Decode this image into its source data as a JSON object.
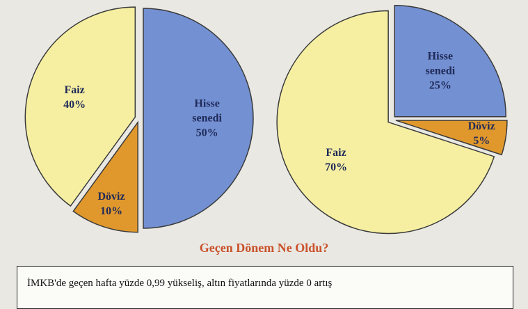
{
  "chart_data": [
    {
      "type": "pie",
      "categories": [
        "Hisse senedi",
        "Döviz",
        "Faiz"
      ],
      "values": [
        50,
        10,
        40
      ],
      "value_labels": [
        "50%",
        "10%",
        "40%"
      ],
      "colors": [
        "#7390d2",
        "#e0982c",
        "#f6efa2"
      ]
    },
    {
      "type": "pie",
      "categories": [
        "Hisse senedi",
        "Döviz",
        "Faiz"
      ],
      "values": [
        25,
        5,
        70
      ],
      "value_labels": [
        "25%",
        "5%",
        "70%"
      ],
      "colors": [
        "#7390d2",
        "#e0982c",
        "#f6efa2"
      ]
    }
  ],
  "heading": "Geçen Dönem Ne Oldu?",
  "body_text": "İMKB'de geçen hafta yüzde 0,99 yükseliş, altın fiyatlarında yüzde 0 artış"
}
